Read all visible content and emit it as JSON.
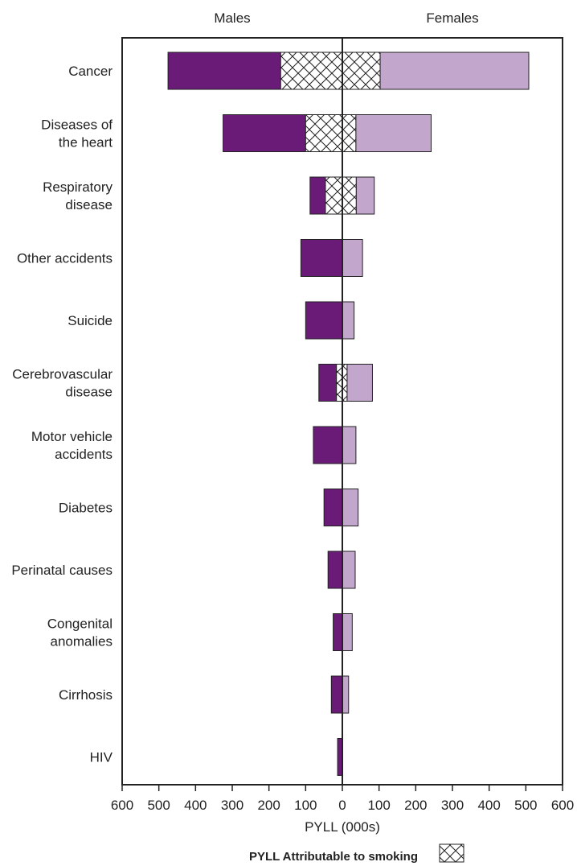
{
  "chart_data": {
    "type": "bar",
    "orientation": "horizontal-butterfly",
    "left_label": "Males",
    "right_label": "Females",
    "xlabel": "PYLL (000s)",
    "xlim": [
      -600,
      600
    ],
    "xticks": [
      -600,
      -500,
      -400,
      -300,
      -200,
      -100,
      0,
      100,
      200,
      300,
      400,
      500,
      600
    ],
    "xtick_labels": [
      "600",
      "500",
      "400",
      "300",
      "200",
      "100",
      "0",
      "100",
      "200",
      "300",
      "400",
      "500",
      "600"
    ],
    "categories": [
      {
        "label": [
          "Cancer"
        ],
        "male": 475,
        "male_smoking": 168,
        "female": 508,
        "female_smoking": 103
      },
      {
        "label": [
          "Diseases of",
          "the heart"
        ],
        "male": 325,
        "male_smoking": 100,
        "female": 242,
        "female_smoking": 37
      },
      {
        "label": [
          "Respiratory",
          "disease"
        ],
        "male": 88,
        "male_smoking": 46,
        "female": 87,
        "female_smoking": 38
      },
      {
        "label": [
          "Other accidents"
        ],
        "male": 113,
        "male_smoking": 0,
        "female": 55,
        "female_smoking": 0
      },
      {
        "label": [
          "Suicide"
        ],
        "male": 100,
        "male_smoking": 0,
        "female": 32,
        "female_smoking": 0
      },
      {
        "label": [
          "Cerebrovascular",
          "disease"
        ],
        "male": 64,
        "male_smoking": 16,
        "female": 82,
        "female_smoking": 13
      },
      {
        "label": [
          "Motor vehicle",
          "accidents"
        ],
        "male": 79,
        "male_smoking": 0,
        "female": 37,
        "female_smoking": 0
      },
      {
        "label": [
          "Diabetes"
        ],
        "male": 50,
        "male_smoking": 0,
        "female": 43,
        "female_smoking": 0
      },
      {
        "label": [
          "Perinatal causes"
        ],
        "male": 39,
        "male_smoking": 0,
        "female": 35,
        "female_smoking": 0
      },
      {
        "label": [
          "Congenital",
          "anomalies"
        ],
        "male": 25,
        "male_smoking": 0,
        "female": 27,
        "female_smoking": 0
      },
      {
        "label": [
          "Cirrhosis"
        ],
        "male": 30,
        "male_smoking": 0,
        "female": 17,
        "female_smoking": 0
      },
      {
        "label": [
          "HIV"
        ],
        "male": 13,
        "male_smoking": 0,
        "female": 0,
        "female_smoking": 0
      }
    ],
    "legend": {
      "label": "PYLL Attributable to smoking",
      "placement": "bottom"
    },
    "colors": {
      "male": "#6a1b78",
      "female": "#c3a6cc",
      "smoking_fill": "#ffffff",
      "hatch": "#222222"
    },
    "grid": false
  }
}
